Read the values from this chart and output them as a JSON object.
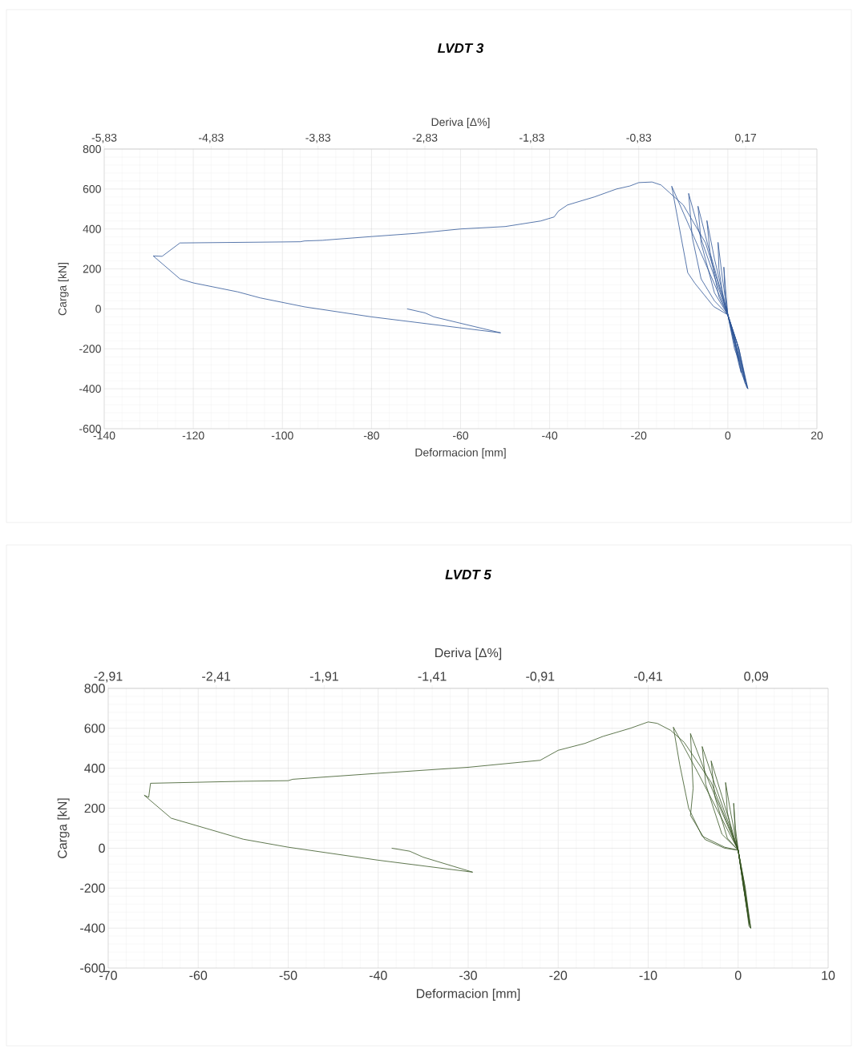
{
  "chart_data": [
    {
      "type": "line",
      "title": "LVDT 3",
      "x2label": "Deriva [Δ%]",
      "xlabel": "Deformacion [mm]",
      "ylabel": "Carga [kN]",
      "xlim": [
        -140,
        20
      ],
      "xticks": [
        -140,
        -120,
        -100,
        -80,
        -60,
        -40,
        -20,
        0,
        20
      ],
      "x2lim": [
        -5.83,
        0.8367
      ],
      "x2ticks": [
        {
          "value": -5.83,
          "label": "-5,83"
        },
        {
          "value": -4.83,
          "label": "-4,83"
        },
        {
          "value": -3.83,
          "label": "-3,83"
        },
        {
          "value": -2.83,
          "label": "-2,83"
        },
        {
          "value": -1.83,
          "label": "-1,83"
        },
        {
          "value": -0.83,
          "label": "-0,83"
        },
        {
          "value": 0.17,
          "label": "0,17"
        }
      ],
      "ylim": [
        -600,
        800
      ],
      "yticks": [
        -600,
        -400,
        -200,
        0,
        200,
        400,
        600,
        800
      ],
      "grid": true,
      "series": [
        {
          "color": "#2f5597",
          "x": [
            0,
            -0.5,
            -0.9,
            -0.6,
            0,
            1.5,
            2.5,
            1.2,
            0,
            -1.2,
            -2.2,
            -2,
            -1,
            0,
            2.5,
            3,
            1.5,
            0,
            -3,
            -4.7,
            -4,
            -2,
            0,
            3.2,
            3.8,
            2,
            0,
            -4.5,
            -6.7,
            -6,
            -3,
            0,
            3.8,
            4.2,
            2.2,
            0,
            -6,
            -8.8,
            -8,
            -6,
            -3,
            0,
            4.2,
            4.5,
            2.5,
            0,
            -8,
            -12.6,
            -11,
            -9,
            -7.4,
            -3.2,
            0,
            4.5,
            4.3,
            2.5,
            0,
            -5,
            -10,
            -13,
            -15,
            -17,
            -20,
            -22,
            -25,
            -30,
            -36,
            -38,
            -39,
            -42,
            -50,
            -60,
            -70,
            -80,
            -90,
            -91,
            -95,
            -96,
            -100,
            -123,
            -127,
            -129,
            -123,
            -120,
            -110,
            -105,
            -95,
            -80,
            -51,
            -66,
            -68,
            -72
          ],
          "values": [
            -30,
            100,
            209,
            60,
            -30,
            -200,
            -260,
            -120,
            -30,
            150,
            333,
            200,
            50,
            -30,
            -280,
            -320,
            -140,
            -30,
            250,
            442,
            280,
            60,
            -30,
            -330,
            -360,
            -170,
            -30,
            320,
            514,
            330,
            80,
            -30,
            -370,
            -385,
            -180,
            -30,
            350,
            578,
            360,
            150,
            40,
            -30,
            -390,
            -400,
            -200,
            -30,
            380,
            614,
            420,
            181,
            128,
            12,
            -30,
            -400,
            -395,
            -200,
            -30,
            330,
            520,
            580,
            620,
            635,
            632,
            615,
            600,
            560,
            520,
            490,
            460,
            440,
            412,
            400,
            378,
            362,
            345,
            343,
            340,
            336,
            335,
            330,
            263,
            265,
            150,
            130,
            85,
            55,
            10,
            -40,
            -120,
            -40,
            -20,
            0
          ]
        }
      ]
    },
    {
      "type": "line",
      "title": "LVDT 5",
      "x2label": "Deriva [Δ%]",
      "xlabel": "Deformacion [mm]",
      "ylabel": "Carga [kN]",
      "xlim": [
        -70,
        10
      ],
      "xticks": [
        -70,
        -60,
        -50,
        -40,
        -30,
        -20,
        -10,
        0,
        10
      ],
      "x2lim": [
        -2.91,
        0.4233
      ],
      "x2ticks": [
        {
          "value": -2.91,
          "label": "-2,91"
        },
        {
          "value": -2.41,
          "label": "-2,41"
        },
        {
          "value": -1.91,
          "label": "-1,91"
        },
        {
          "value": -1.41,
          "label": "-1,41"
        },
        {
          "value": -0.91,
          "label": "-0,91"
        },
        {
          "value": -0.41,
          "label": "-0,41"
        },
        {
          "value": 0.09,
          "label": "0,09"
        }
      ],
      "ylim": [
        -600,
        800
      ],
      "yticks": [
        -600,
        -400,
        -200,
        0,
        200,
        400,
        600,
        800
      ],
      "grid": true,
      "series": [
        {
          "color": "#375623",
          "x": [
            0,
            -0.3,
            -0.5,
            -0.3,
            0,
            0.6,
            0.9,
            0.4,
            0,
            -0.8,
            -1.4,
            -1.2,
            -0.5,
            0,
            0.9,
            1.1,
            0.5,
            0,
            -1.8,
            -3,
            -2.6,
            -1.2,
            0,
            1.1,
            1.2,
            0.6,
            0,
            -2.6,
            -4,
            -3.6,
            -1.8,
            0,
            1.2,
            1.3,
            0.7,
            0,
            -3.5,
            -5.3,
            -5,
            -5.3,
            -3.7,
            -1.5,
            0,
            1.3,
            1.4,
            0.8,
            0,
            -4.5,
            -7.2,
            -6.5,
            -5.5,
            -4,
            -1.5,
            0,
            1.4,
            1.2,
            0.6,
            0,
            -3,
            -6,
            -7.5,
            -9,
            -10,
            -12,
            -15,
            -17,
            -20,
            -22,
            -30,
            -40,
            -49.5,
            -50,
            -55,
            -65.3,
            -65.5,
            -66,
            -63,
            -55,
            -50,
            -40,
            -29.5,
            -35,
            -36.5,
            -38.5
          ],
          "values": [
            -10,
            100,
            225,
            60,
            -10,
            -200,
            -270,
            -120,
            -10,
            170,
            329,
            180,
            40,
            -10,
            -290,
            -330,
            -140,
            -10,
            260,
            437,
            260,
            50,
            -10,
            -340,
            -360,
            -170,
            -10,
            320,
            509,
            320,
            70,
            -10,
            -370,
            -385,
            -180,
            -10,
            360,
            574,
            300,
            164,
            44,
            0,
            -10,
            -390,
            -401,
            -200,
            -10,
            380,
            606,
            420,
            200,
            60,
            5,
            -10,
            -400,
            -390,
            -180,
            -10,
            330,
            530,
            590,
            625,
            632,
            600,
            560,
            525,
            490,
            440,
            405,
            375,
            345,
            338,
            335,
            325,
            255,
            265,
            150,
            45,
            5,
            -60,
            -120,
            -45,
            -15,
            0
          ]
        }
      ]
    }
  ]
}
